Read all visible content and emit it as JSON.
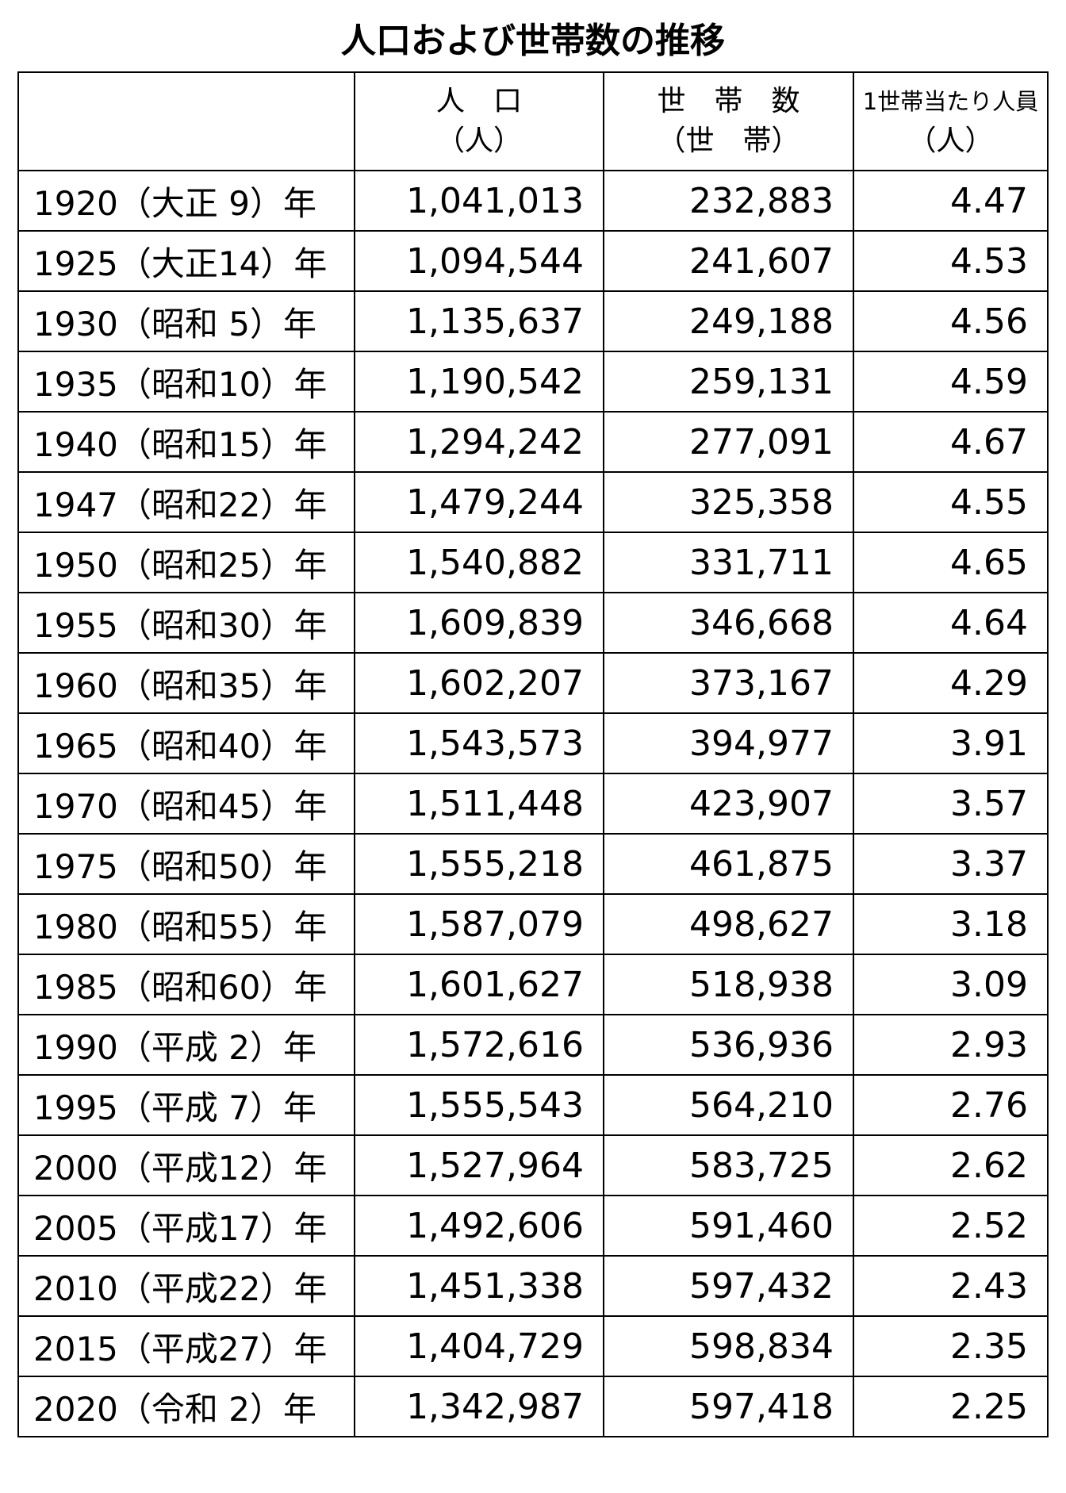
{
  "title": "人口および世帯数の推移",
  "table": {
    "headers": [
      [
        "人　口",
        "（人）"
      ],
      [
        "世　帯　数",
        "（世　帯）"
      ],
      [
        "1世帯当たり人員",
        "（人）"
      ]
    ],
    "rows": [
      [
        "1920（大正 9）年",
        "1,041,013",
        "232,883",
        "4.47"
      ],
      [
        "1925（大正14）年",
        "1,094,544",
        "241,607",
        "4.53"
      ],
      [
        "1930（昭和 5）年",
        "1,135,637",
        "249,188",
        "4.56"
      ],
      [
        "1935（昭和10）年",
        "1,190,542",
        "259,131",
        "4.59"
      ],
      [
        "1940（昭和15）年",
        "1,294,242",
        "277,091",
        "4.67"
      ],
      [
        "1947（昭和22）年",
        "1,479,244",
        "325,358",
        "4.55"
      ],
      [
        "1950（昭和25）年",
        "1,540,882",
        "331,711",
        "4.65"
      ],
      [
        "1955（昭和30）年",
        "1,609,839",
        "346,668",
        "4.64"
      ],
      [
        "1960（昭和35）年",
        "1,602,207",
        "373,167",
        "4.29"
      ],
      [
        "1965（昭和40）年",
        "1,543,573",
        "394,977",
        "3.91"
      ],
      [
        "1970（昭和45）年",
        "1,511,448",
        "423,907",
        "3.57"
      ],
      [
        "1975（昭和50）年",
        "1,555,218",
        "461,875",
        "3.37"
      ],
      [
        "1980（昭和55）年",
        "1,587,079",
        "498,627",
        "3.18"
      ],
      [
        "1985（昭和60）年",
        "1,601,627",
        "518,938",
        "3.09"
      ],
      [
        "1990（平成 2）年",
        "1,572,616",
        "536,936",
        "2.93"
      ],
      [
        "1995（平成 7）年",
        "1,555,543",
        "564,210",
        "2.76"
      ],
      [
        "2000（平成12）年",
        "1,527,964",
        "583,725",
        "2.62"
      ],
      [
        "2005（平成17）年",
        "1,492,606",
        "591,460",
        "2.52"
      ],
      [
        "2010（平成22）年",
        "1,451,338",
        "597,432",
        "2.43"
      ],
      [
        "2015（平成27）年",
        "1,404,729",
        "598,834",
        "2.35"
      ],
      [
        "2020（令和 2）年",
        "1,342,987",
        "597,418",
        "2.25"
      ]
    ]
  }
}
